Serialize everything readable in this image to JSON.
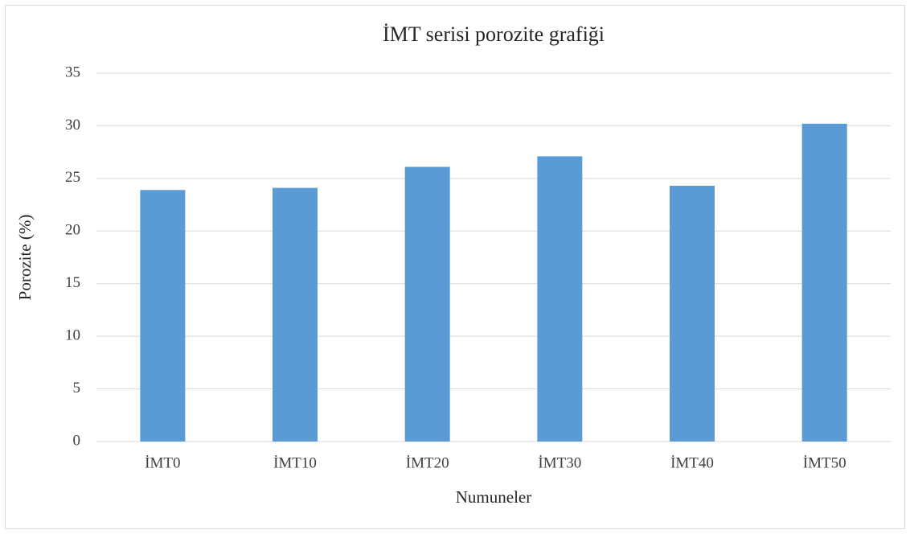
{
  "chart_data": {
    "type": "bar",
    "title": "İMT serisi porozite grafiği",
    "x_label": "Numuneler",
    "y_label": "Porozite (%)",
    "categories": [
      "İMT0",
      "İMT10",
      "İMT20",
      "İMT30",
      "İMT40",
      "İMT50"
    ],
    "values": [
      23.9,
      24.1,
      26.1,
      27.1,
      24.3,
      30.2
    ],
    "color": "#5b9bd5",
    "ylim": [
      0,
      35
    ],
    "yticks": [
      0,
      5,
      10,
      15,
      20,
      25,
      30,
      35
    ],
    "grid": true
  }
}
